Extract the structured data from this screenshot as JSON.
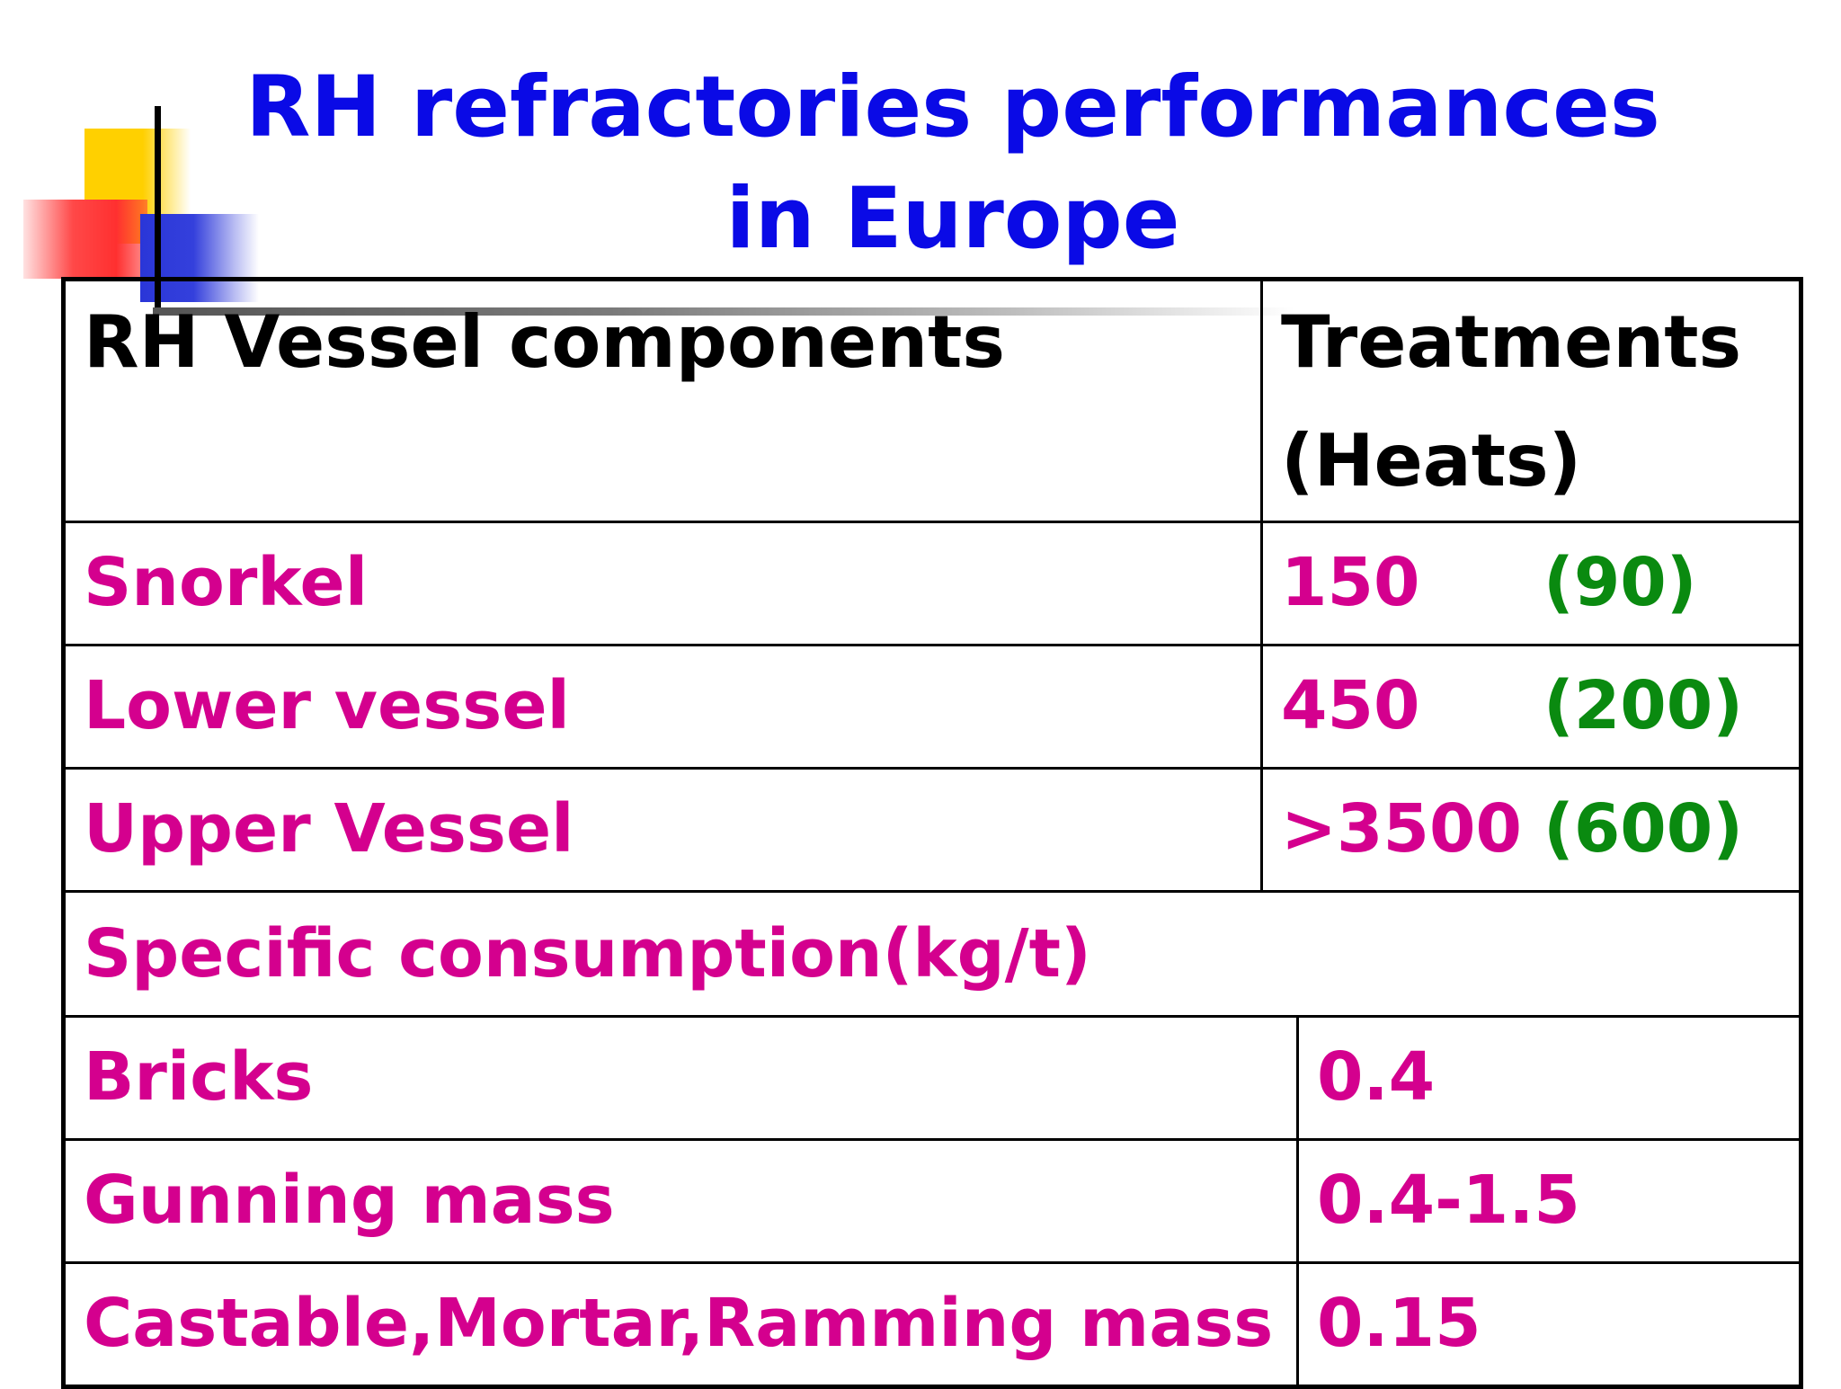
{
  "title_line1": "RH refractories performances",
  "title_line2": "in Europe",
  "colors": {
    "title": "#0a0ae6",
    "row_text": "#d4008e",
    "parenthetical": "#0a8a10",
    "header_text": "#000000"
  },
  "table": {
    "header": {
      "components": "RH Vessel components",
      "treatments_line1": "Treatments",
      "treatments_line2": "(Heats)"
    },
    "components": [
      {
        "name": "Snorkel",
        "heats": "150",
        "paren": "(90)"
      },
      {
        "name": "Lower vessel",
        "heats": "450",
        "paren": "(200)"
      },
      {
        "name": "Upper Vessel",
        "heats": ">3500",
        "paren": "(600)"
      }
    ],
    "consumption_heading": "Specific consumption(kg/t)",
    "consumption": [
      {
        "name": "Bricks",
        "value": "0.4"
      },
      {
        "name": "Gunning mass",
        "value": "0.4-1.5"
      },
      {
        "name": "Castable,Mortar,Ramming mass",
        "value": "0.15"
      }
    ]
  }
}
